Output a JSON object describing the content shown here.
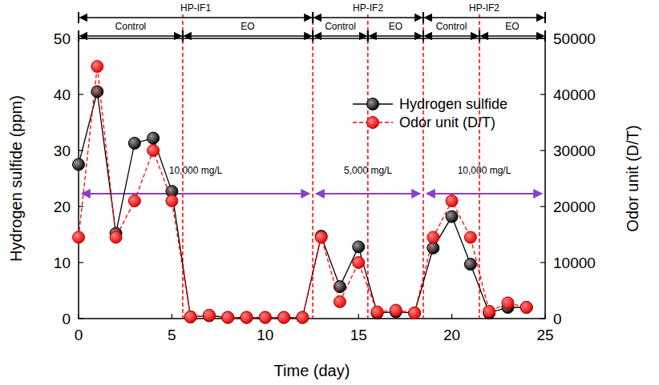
{
  "chart_data": {
    "type": "line",
    "x_label": "Time (day)",
    "y_label": "Hydrogen sulfide (ppm)",
    "y2_label": "Odor unit (D/T)",
    "x": [
      0,
      1,
      2,
      3,
      4,
      5,
      6,
      7,
      8,
      9,
      10,
      11,
      12,
      13,
      14,
      15,
      16,
      17,
      18,
      19,
      20,
      21,
      22,
      23,
      24
    ],
    "series": [
      {
        "name": "Hydrogen sulfide",
        "color": "#000000",
        "marker": "circle",
        "line_style": "solid",
        "values": [
          27.5,
          40.5,
          15.2,
          31.3,
          32.2,
          22.7,
          0.3,
          0.5,
          0.2,
          0.2,
          0.2,
          0.2,
          0.2,
          14.7,
          5.7,
          12.8,
          1.0,
          1.2,
          1.0,
          12.6,
          18.2,
          9.7,
          1.0,
          2.0,
          2.0
        ]
      },
      {
        "name": "Odor unit (D/T)",
        "color": "#ff0000",
        "marker": "circle",
        "line_style": "dashed",
        "axis": "y2",
        "values": [
          14500,
          45000,
          14500,
          21000,
          30000,
          21000,
          300,
          600,
          200,
          200,
          200,
          200,
          200,
          14500,
          3000,
          10000,
          1200,
          1500,
          1000,
          14500,
          21000,
          14500,
          1300,
          2800,
          2000
        ]
      }
    ],
    "xlim": [
      0,
      25
    ],
    "xticks": [
      0,
      5,
      10,
      15,
      20,
      25
    ],
    "ylim": [
      0,
      50
    ],
    "yticks": [
      0,
      10,
      20,
      30,
      40,
      50
    ],
    "y2lim": [
      0,
      50000
    ],
    "y2ticks": [
      0,
      10000,
      20000,
      30000,
      40000,
      50000
    ],
    "legend": "upper right",
    "grid": false,
    "annotations": {
      "reactors": [
        {
          "text": "HP-IF1",
          "start": 0,
          "end": 12.55
        },
        {
          "text": "HP-IF2",
          "start": 12.55,
          "end": 18.47
        },
        {
          "text": "HP-IF2",
          "start": 18.47,
          "end": 25
        }
      ],
      "treatments": [
        {
          "text": "Control",
          "start": 0,
          "end": 5.58
        },
        {
          "text": "EO",
          "start": 5.58,
          "end": 12.55
        },
        {
          "text": "Control",
          "start": 12.55,
          "end": 15.5
        },
        {
          "text": "EO",
          "start": 15.5,
          "end": 18.47
        },
        {
          "text": "Control",
          "start": 18.47,
          "end": 21.48
        },
        {
          "text": "EO",
          "start": 21.48,
          "end": 25
        }
      ],
      "dosages": [
        {
          "text": "10,000 mg/L",
          "start": 0,
          "end": 12.55,
          "y": 22.3
        },
        {
          "text": "5,000 mg/L",
          "start": 12.55,
          "end": 18.47,
          "y": 22.3
        },
        {
          "text": "10,000 mg/L",
          "start": 18.47,
          "end": 25,
          "y": 22.3
        }
      ]
    }
  }
}
